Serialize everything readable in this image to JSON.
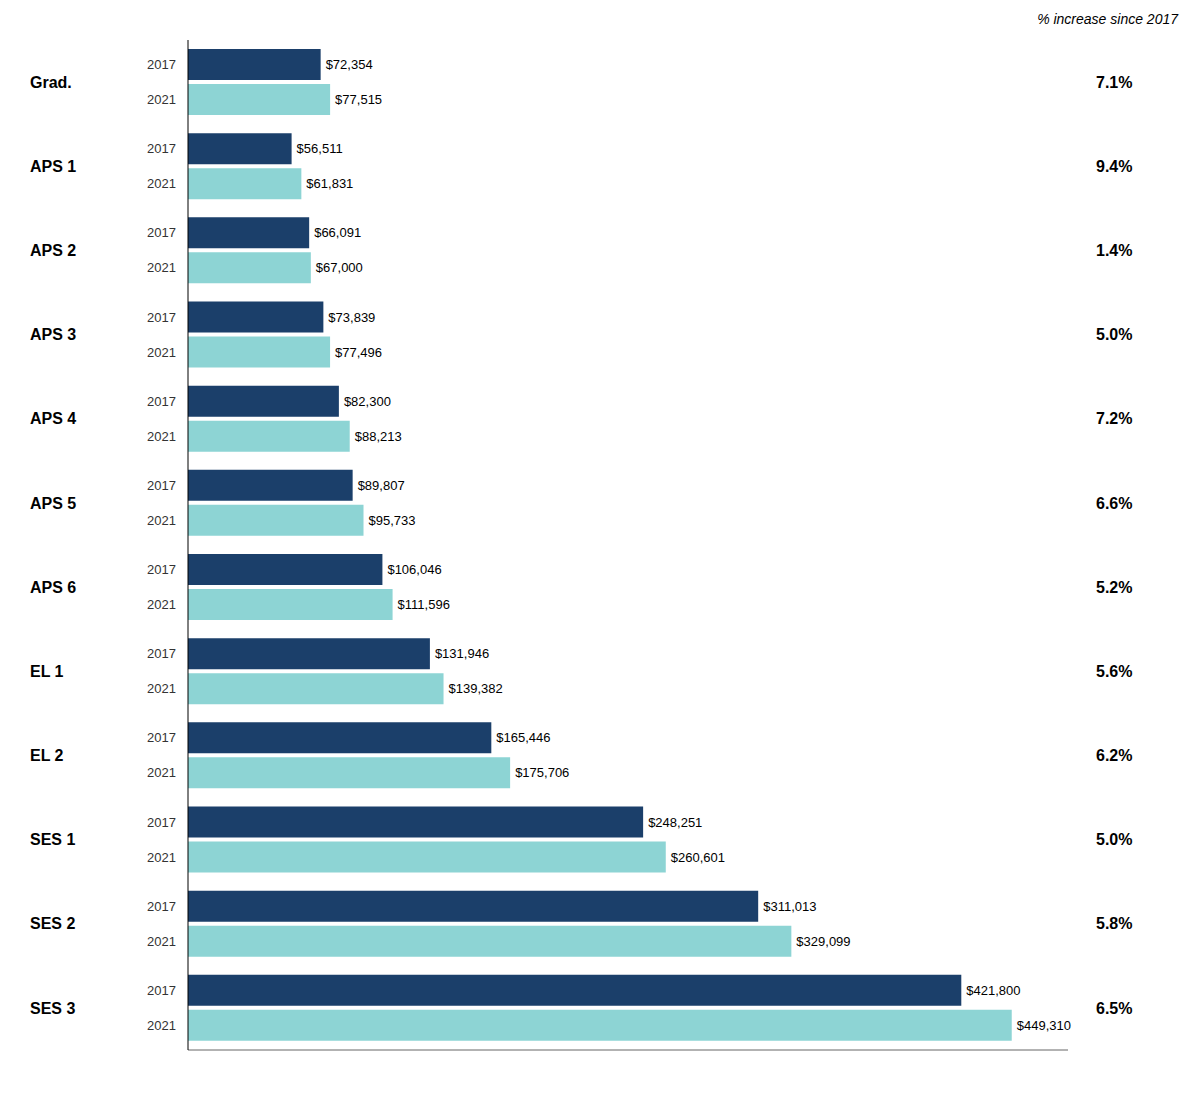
{
  "chart_data": {
    "type": "bar",
    "orientation": "horizontal",
    "categories": [
      "Grad.",
      "APS 1",
      "APS 2",
      "APS 3",
      "APS 4",
      "APS 5",
      "APS 6",
      "EL 1",
      "EL 2",
      "SES 1",
      "SES 2",
      "SES 3"
    ],
    "series": [
      {
        "name": "2017",
        "color": "#1b3f6a",
        "values": [
          72354,
          56511,
          66091,
          73839,
          82300,
          89807,
          106046,
          131946,
          165446,
          248251,
          311013,
          421800
        ],
        "value_labels": [
          "$72,354",
          "$56,511",
          "$66,091",
          "$73,839",
          "$82,300",
          "$89,807",
          "$106,046",
          "$131,946",
          "$165,446",
          "$248,251",
          "$311,013",
          "$421,800"
        ]
      },
      {
        "name": "2021",
        "color": "#8dd4d4",
        "values": [
          77515,
          61831,
          67000,
          77496,
          88213,
          95733,
          111596,
          139382,
          175706,
          260601,
          329099,
          449310
        ],
        "value_labels": [
          "$77,515",
          "$61,831",
          "$67,000",
          "$77,496",
          "$88,213",
          "$95,733",
          "$111,596",
          "$139,382",
          "$175,706",
          "$260,601",
          "$329,099",
          "$449,310"
        ]
      }
    ],
    "xlim": [
      0,
      480000
    ],
    "data_labels": true,
    "tick_labels": "y",
    "grid": false,
    "annotations": {
      "header": "% increase since 2017",
      "values": [
        "7.1%",
        "9.4%",
        "1.4%",
        "5.0%",
        "7.2%",
        "6.6%",
        "5.2%",
        "5.6%",
        "6.2%",
        "5.0%",
        "5.8%",
        "6.5%"
      ]
    }
  }
}
